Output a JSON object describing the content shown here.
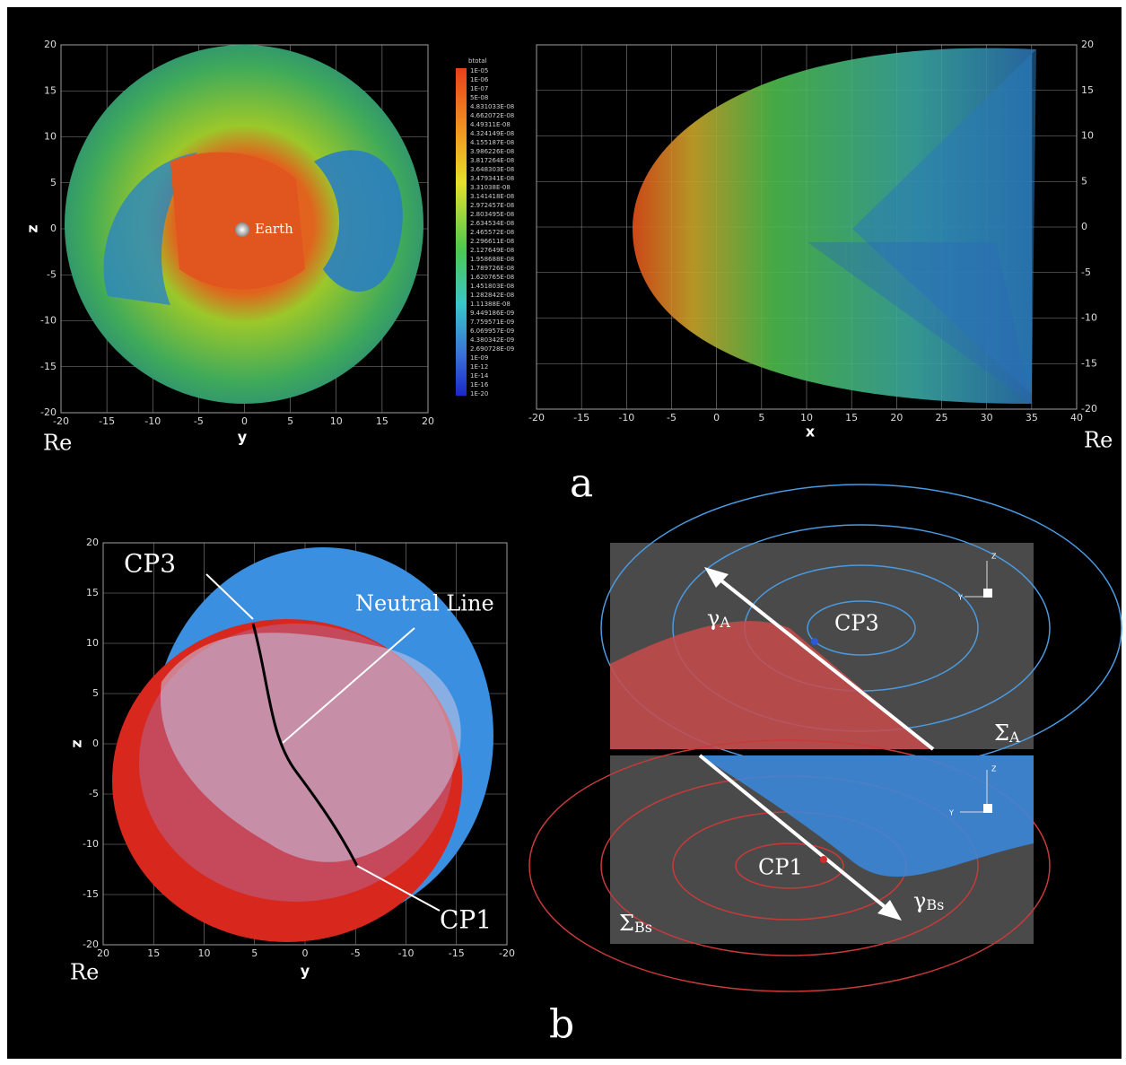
{
  "panel_a": {
    "label": "a",
    "left_plot": {
      "x_label": "y",
      "y_label": "z",
      "unit": "Re",
      "marker": "Earth",
      "xticks": [
        -20,
        -15,
        -10,
        -5,
        0,
        5,
        10,
        15,
        20
      ],
      "yticks": [
        20,
        15,
        10,
        5,
        0,
        -5,
        -10,
        -15,
        -20
      ],
      "colorbar": {
        "title": "btotal",
        "labels": [
          "1E-05",
          "1E-06",
          "1E-07",
          "5E-08",
          "4.831033E-08",
          "4.662072E-08",
          "4.49311E-08",
          "4.324149E-08",
          "4.155187E-08",
          "3.986226E-08",
          "3.817264E-08",
          "3.648303E-08",
          "3.479341E-08",
          "3.31038E-08",
          "3.141418E-08",
          "2.972457E-08",
          "2.803495E-08",
          "2.634534E-08",
          "2.465572E-08",
          "2.296611E-08",
          "2.127649E-08",
          "1.958688E-08",
          "1.789726E-08",
          "1.620765E-08",
          "1.451803E-08",
          "1.282842E-08",
          "1.11388E-08",
          "9.449186E-09",
          "7.759571E-09",
          "6.069957E-09",
          "4.380342E-09",
          "2.690728E-09",
          "1E-09",
          "1E-12",
          "1E-14",
          "1E-16",
          "1E-20"
        ]
      }
    },
    "right_plot": {
      "x_label": "x",
      "unit": "Re",
      "xticks": [
        -20,
        -15,
        -10,
        -5,
        0,
        5,
        10,
        15,
        20,
        25,
        30,
        35,
        40
      ],
      "yticks": [
        20,
        15,
        10,
        5,
        0,
        -5,
        -10,
        -15,
        -20
      ]
    }
  },
  "panel_b": {
    "label": "b",
    "left_plot": {
      "x_label": "y",
      "y_label": "z",
      "unit": "Re",
      "xticks": [
        20,
        15,
        10,
        5,
        0,
        -5,
        -10,
        -15,
        -20
      ],
      "yticks": [
        20,
        15,
        10,
        5,
        0,
        -5,
        -10,
        -15,
        -20
      ],
      "annotations": [
        "CP3",
        "Neutral Line",
        "CP1"
      ]
    },
    "inset_top": {
      "arrow": {
        "symbol": "γ",
        "subscript": "A"
      },
      "point": "CP3",
      "surface": {
        "symbol": "Σ",
        "subscript": "A"
      },
      "axes": [
        "Z",
        "Y"
      ]
    },
    "inset_bottom": {
      "arrow": {
        "symbol": "γ",
        "subscript": "Bs"
      },
      "point": "CP1",
      "surface": {
        "symbol": "Σ",
        "subscript": "Bs"
      },
      "axes": [
        "Z",
        "Y"
      ]
    }
  }
}
